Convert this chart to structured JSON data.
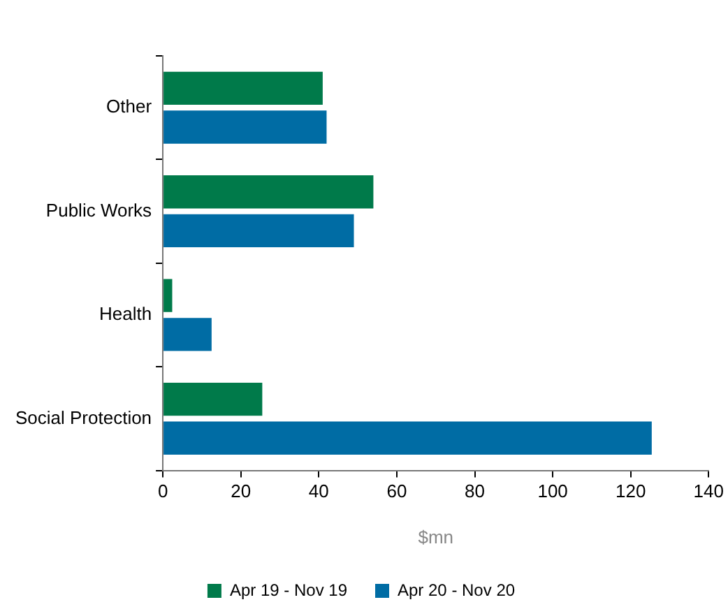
{
  "chart_data": {
    "type": "bar",
    "orientation": "horizontal",
    "categories": [
      "Other",
      "Public Works",
      "Health",
      "Social Protection"
    ],
    "series": [
      {
        "name": "Apr 19 - Nov 19",
        "color": "#007a4a",
        "values": [
          41,
          54,
          2.4,
          25.5
        ]
      },
      {
        "name": "Apr 20 - Nov 20",
        "color": "#006ca4",
        "values": [
          42,
          49,
          12.5,
          125.4
        ]
      }
    ],
    "xlabel": "$mn",
    "xlim": [
      0,
      140
    ],
    "xticks": [
      0,
      20,
      40,
      60,
      80,
      100,
      120,
      140
    ],
    "grid": false,
    "legend": "bottom"
  }
}
